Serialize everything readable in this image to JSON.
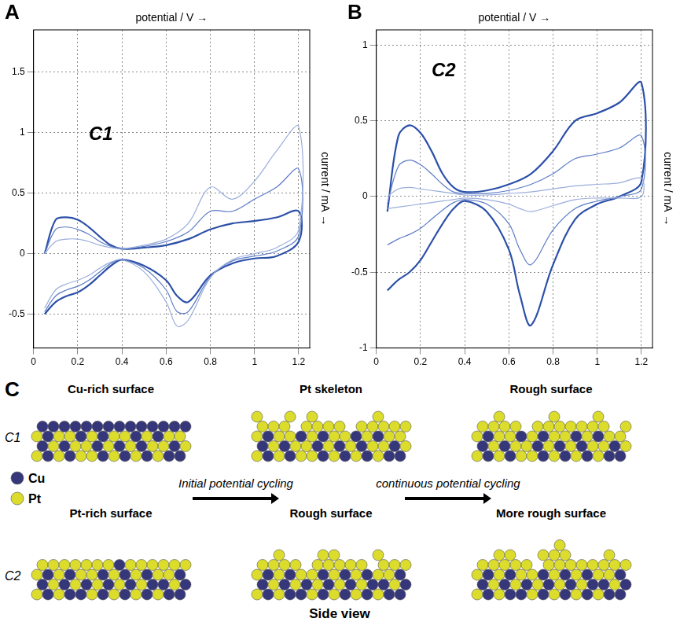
{
  "chart_data": [
    {
      "panel": "A",
      "type": "line",
      "annotation": "C1",
      "xlabel": "potential / V →",
      "ylabel": "current / mA →",
      "x": [
        0.05,
        0.1,
        0.15,
        0.2,
        0.25,
        0.3,
        0.35,
        0.4,
        0.5,
        0.6,
        0.7,
        0.8,
        0.9,
        1.0,
        1.1,
        1.2,
        1.2,
        1.1,
        1.0,
        0.9,
        0.8,
        0.7,
        0.65,
        0.6,
        0.5,
        0.4,
        0.35,
        0.3,
        0.25,
        0.2,
        0.15,
        0.1,
        0.05
      ],
      "series": [
        {
          "color": "#9aaedc",
          "values": [
            0.0,
            0.1,
            0.12,
            0.12,
            0.1,
            0.07,
            0.05,
            0.04,
            0.07,
            0.12,
            0.25,
            0.55,
            0.45,
            0.6,
            0.85,
            1.05,
            0.2,
            0.05,
            0.0,
            -0.05,
            -0.2,
            -0.55,
            -0.6,
            -0.4,
            -0.15,
            -0.05,
            -0.07,
            -0.12,
            -0.18,
            -0.22,
            -0.25,
            -0.3,
            -0.45
          ]
        },
        {
          "color": "#5d7cc6",
          "values": [
            0.0,
            0.2,
            0.22,
            0.2,
            0.16,
            0.1,
            0.06,
            0.04,
            0.06,
            0.1,
            0.18,
            0.35,
            0.35,
            0.45,
            0.55,
            0.7,
            0.15,
            0.02,
            -0.02,
            -0.06,
            -0.19,
            -0.48,
            -0.48,
            -0.3,
            -0.12,
            -0.05,
            -0.08,
            -0.15,
            -0.22,
            -0.27,
            -0.3,
            -0.35,
            -0.48
          ]
        },
        {
          "color": "#2c50a8",
          "values": [
            0.0,
            0.28,
            0.3,
            0.28,
            0.22,
            0.14,
            0.07,
            0.04,
            0.05,
            0.07,
            0.12,
            0.2,
            0.25,
            0.27,
            0.3,
            0.35,
            0.1,
            -0.02,
            -0.04,
            -0.08,
            -0.18,
            -0.4,
            -0.35,
            -0.22,
            -0.1,
            -0.05,
            -0.1,
            -0.18,
            -0.26,
            -0.32,
            -0.35,
            -0.4,
            -0.5
          ]
        }
      ],
      "xlim": [
        0,
        1.25
      ],
      "ylim": [
        -0.78,
        1.85
      ],
      "xticks": [
        0,
        0.2,
        0.4,
        0.6,
        0.8,
        1,
        1.2
      ],
      "yticks": [
        -0.5,
        0,
        0.5,
        1,
        1.5
      ],
      "grid": true
    },
    {
      "panel": "B",
      "type": "line",
      "annotation": "C2",
      "xlabel": "potential / V →",
      "ylabel": "current / mA →",
      "x": [
        0.05,
        0.1,
        0.15,
        0.2,
        0.25,
        0.3,
        0.35,
        0.4,
        0.5,
        0.6,
        0.7,
        0.8,
        0.9,
        1.0,
        1.1,
        1.2,
        1.2,
        1.1,
        1.0,
        0.9,
        0.8,
        0.7,
        0.65,
        0.6,
        0.5,
        0.4,
        0.35,
        0.3,
        0.25,
        0.2,
        0.15,
        0.1,
        0.05
      ],
      "series": [
        {
          "color": "#9aaedc",
          "values": [
            0.0,
            0.05,
            0.06,
            0.05,
            0.04,
            0.03,
            0.02,
            0.01,
            0.01,
            0.02,
            0.03,
            0.05,
            0.07,
            0.08,
            0.09,
            0.12,
            0.0,
            -0.01,
            -0.01,
            -0.02,
            -0.06,
            -0.1,
            -0.08,
            -0.05,
            -0.02,
            -0.01,
            -0.02,
            -0.03,
            -0.04,
            -0.05,
            -0.06,
            -0.07,
            -0.08
          ]
        },
        {
          "color": "#5d7cc6",
          "values": [
            -0.05,
            0.2,
            0.24,
            0.21,
            0.15,
            0.08,
            0.03,
            0.02,
            0.02,
            0.04,
            0.08,
            0.15,
            0.25,
            0.28,
            0.32,
            0.4,
            0.05,
            0.0,
            -0.03,
            -0.08,
            -0.22,
            -0.45,
            -0.35,
            -0.18,
            -0.05,
            -0.02,
            -0.04,
            -0.09,
            -0.15,
            -0.21,
            -0.25,
            -0.28,
            -0.32
          ]
        },
        {
          "color": "#2c50a8",
          "values": [
            -0.1,
            0.4,
            0.47,
            0.42,
            0.3,
            0.15,
            0.06,
            0.03,
            0.04,
            0.08,
            0.15,
            0.3,
            0.5,
            0.55,
            0.62,
            0.75,
            0.1,
            0.0,
            -0.05,
            -0.15,
            -0.45,
            -0.85,
            -0.65,
            -0.35,
            -0.1,
            -0.03,
            -0.08,
            -0.18,
            -0.3,
            -0.42,
            -0.5,
            -0.55,
            -0.62
          ]
        }
      ],
      "xlim": [
        0,
        1.25
      ],
      "ylim": [
        -1,
        1.1
      ],
      "xticks": [
        0,
        0.2,
        0.4,
        0.6,
        0.8,
        1,
        1.2
      ],
      "yticks": [
        -1,
        -0.5,
        0,
        0.5,
        1
      ],
      "grid": true
    }
  ],
  "diagram": {
    "panel": "C",
    "rows": [
      {
        "label": "C1",
        "stages": [
          "Cu-rich surface",
          "Pt skeleton",
          "Rough surface"
        ]
      },
      {
        "label": "C2",
        "stages": [
          "Pt-rich surface",
          "Rough surface",
          "More rough surface"
        ]
      }
    ],
    "legend": [
      {
        "label": "Cu",
        "color": "#36377a"
      },
      {
        "label": "Pt",
        "color": "#dcdc2c"
      }
    ],
    "steps": [
      "Initial potential cycling",
      "continuous potential cycling"
    ],
    "caption": "Side view"
  }
}
